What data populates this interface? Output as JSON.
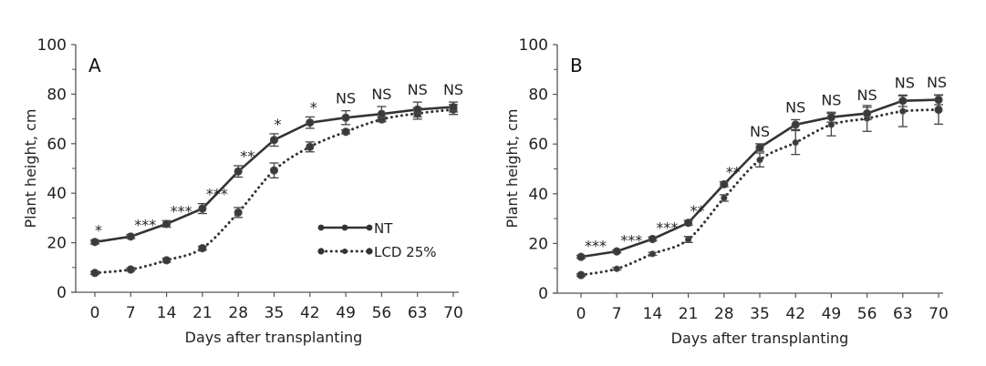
{
  "chart_data": [
    {
      "type": "line",
      "panel": "A",
      "xlabel": "Days after transplanting",
      "ylabel": "Plant height, cm",
      "x": [
        0,
        7,
        14,
        21,
        28,
        35,
        42,
        49,
        56,
        63,
        70
      ],
      "x_tick_labels": [
        "0",
        "7",
        "14",
        "21",
        "28",
        "35",
        "42",
        "49",
        "56",
        "63",
        "70"
      ],
      "ylim": [
        0,
        100
      ],
      "y_ticks": [
        0,
        20,
        40,
        60,
        80,
        100
      ],
      "y_minor_ticks": [
        10,
        30,
        50,
        70,
        90
      ],
      "grid": false,
      "legend": {
        "placement": "center-right",
        "entries": [
          "NT",
          "LCD 25%"
        ]
      },
      "series": [
        {
          "name": "NT",
          "style": "solid",
          "values": [
            20.3,
            22.5,
            27.6,
            33.8,
            48.8,
            61.5,
            68.5,
            70.5,
            72.0,
            73.8,
            74.8
          ],
          "errors": [
            0.8,
            0.8,
            1.3,
            2.0,
            2.3,
            2.5,
            2.3,
            2.8,
            3.0,
            3.0,
            2.0
          ]
        },
        {
          "name": "LCD 25%",
          "style": "dotted",
          "values": [
            7.8,
            9.2,
            12.9,
            17.8,
            32.2,
            49.2,
            58.7,
            64.8,
            69.8,
            72.2,
            73.8
          ],
          "errors": [
            0.6,
            0.6,
            0.8,
            0.8,
            2.0,
            3.0,
            2.0,
            0.8,
            1.0,
            2.3,
            2.0
          ]
        }
      ],
      "annotations": [
        "*",
        "***",
        "***",
        "***",
        "**",
        "*",
        "*",
        "NS",
        "NS",
        "NS",
        "NS"
      ]
    },
    {
      "type": "line",
      "panel": "B",
      "xlabel": "Days after transplanting",
      "ylabel": "Plant height, cm",
      "x": [
        0,
        7,
        14,
        21,
        28,
        35,
        42,
        49,
        56,
        63,
        70
      ],
      "x_tick_labels": [
        "0",
        "7",
        "14",
        "21",
        "28",
        "35",
        "42",
        "49",
        "56",
        "63",
        "70"
      ],
      "ylim": [
        0,
        100
      ],
      "y_ticks": [
        0,
        20,
        40,
        60,
        80,
        100
      ],
      "y_minor_ticks": [
        10,
        30,
        50,
        70,
        90
      ],
      "grid": false,
      "series": [
        {
          "name": "NT",
          "style": "solid",
          "values": [
            14.6,
            16.8,
            21.8,
            28.3,
            43.8,
            58.6,
            67.8,
            70.8,
            72.3,
            77.4,
            77.8
          ],
          "errors": [
            0.6,
            0.6,
            0.8,
            1.0,
            1.0,
            1.5,
            2.0,
            2.0,
            2.5,
            2.3,
            2.0
          ]
        },
        {
          "name": "LCD 25%",
          "style": "dotted",
          "values": [
            7.3,
            9.8,
            15.8,
            21.6,
            38.3,
            53.6,
            60.6,
            67.8,
            70.3,
            73.2,
            73.8
          ],
          "errors": [
            0.5,
            0.5,
            0.6,
            1.2,
            1.3,
            2.8,
            4.8,
            4.5,
            5.2,
            6.2,
            5.8
          ]
        }
      ],
      "annotations": [
        "***",
        "***",
        "***",
        "**",
        "**",
        "NS",
        "NS",
        "NS",
        "NS",
        "NS",
        "NS"
      ]
    }
  ]
}
